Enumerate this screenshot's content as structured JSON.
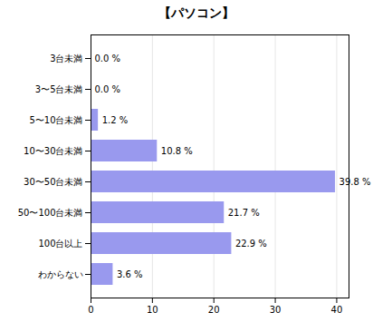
{
  "chart_data": {
    "type": "bar",
    "title": "【パソコン】",
    "categories": [
      "3台未満",
      "3〜5台未満",
      "5〜10台未満",
      "10〜30台未満",
      "30〜50台未満",
      "50〜100台未満",
      "100台以上",
      "わからない"
    ],
    "values": [
      0.0,
      0.0,
      1.2,
      10.8,
      39.8,
      21.7,
      22.9,
      3.6
    ],
    "value_labels": [
      "0.0 %",
      "0.0 %",
      "1.2 %",
      "10.8 %",
      "39.8 %",
      "21.7 %",
      "22.9 %",
      "3.6 %"
    ],
    "color": "#9999EE",
    "xlim": [
      0,
      42
    ],
    "xticks": [
      0,
      10,
      20,
      30,
      40
    ],
    "grid": true,
    "orientation": "horizontal",
    "data_labels": true
  }
}
